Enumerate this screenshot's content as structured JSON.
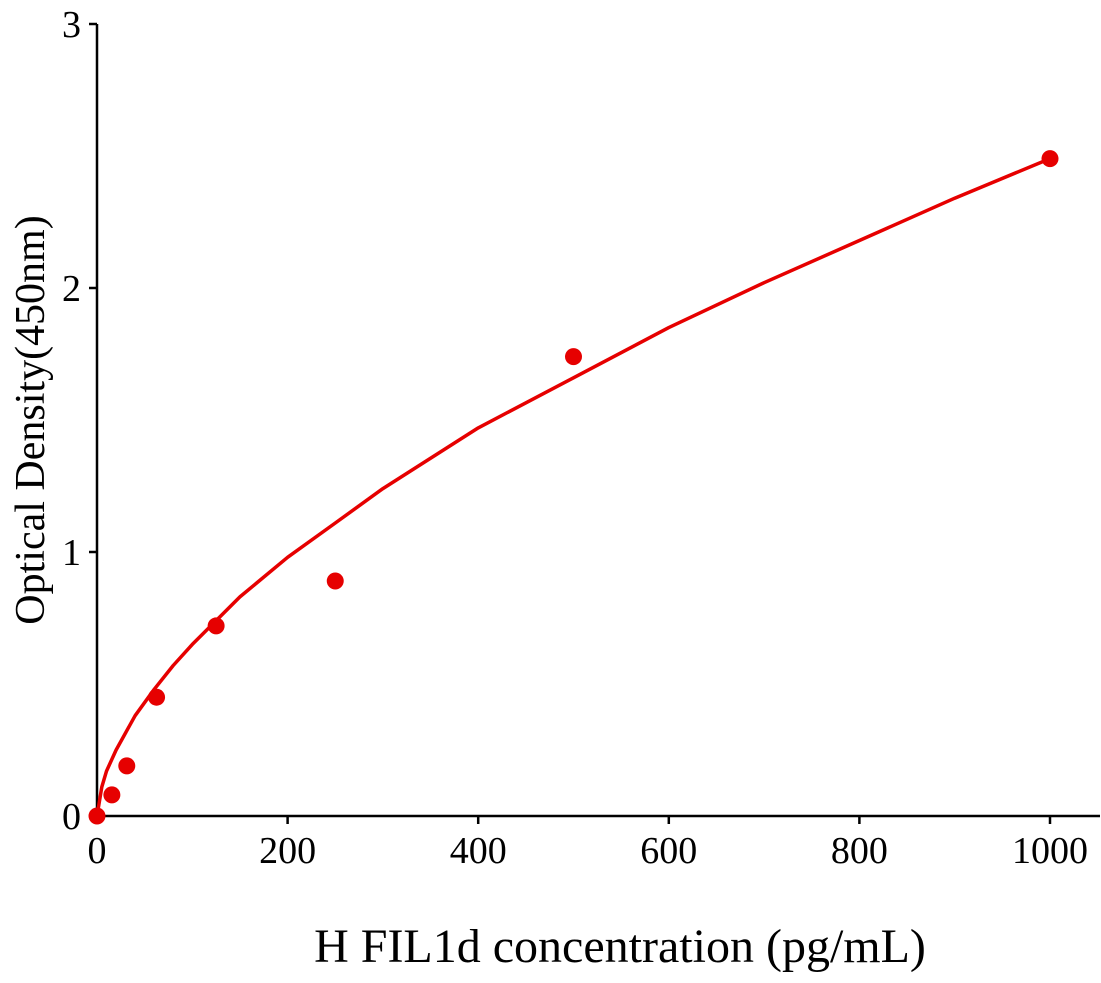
{
  "chart_data": {
    "type": "scatter",
    "title": "",
    "xlabel": "H FIL1d concentration (pg/mL)",
    "ylabel": "Optical Density(450nm)",
    "xlim": [
      0,
      1050
    ],
    "ylim": [
      0,
      3
    ],
    "xticks": [
      0,
      200,
      400,
      600,
      800,
      1000
    ],
    "yticks": [
      0,
      1,
      2,
      3
    ],
    "grid": false,
    "legend": "none",
    "color": "#e60000",
    "points": {
      "x": [
        0,
        15.6,
        31.25,
        62.5,
        125,
        250,
        500,
        1000
      ],
      "y": [
        0.0,
        0.08,
        0.19,
        0.45,
        0.72,
        0.89,
        1.74,
        2.49
      ]
    },
    "fit_curve": {
      "x": [
        0,
        5,
        10,
        20,
        40,
        60,
        80,
        100,
        150,
        200,
        250,
        300,
        400,
        500,
        600,
        700,
        800,
        900,
        1000
      ],
      "y": [
        0,
        0.11,
        0.17,
        0.25,
        0.38,
        0.48,
        0.57,
        0.65,
        0.83,
        0.98,
        1.11,
        1.24,
        1.47,
        1.66,
        1.85,
        2.02,
        2.18,
        2.34,
        2.49
      ]
    }
  }
}
